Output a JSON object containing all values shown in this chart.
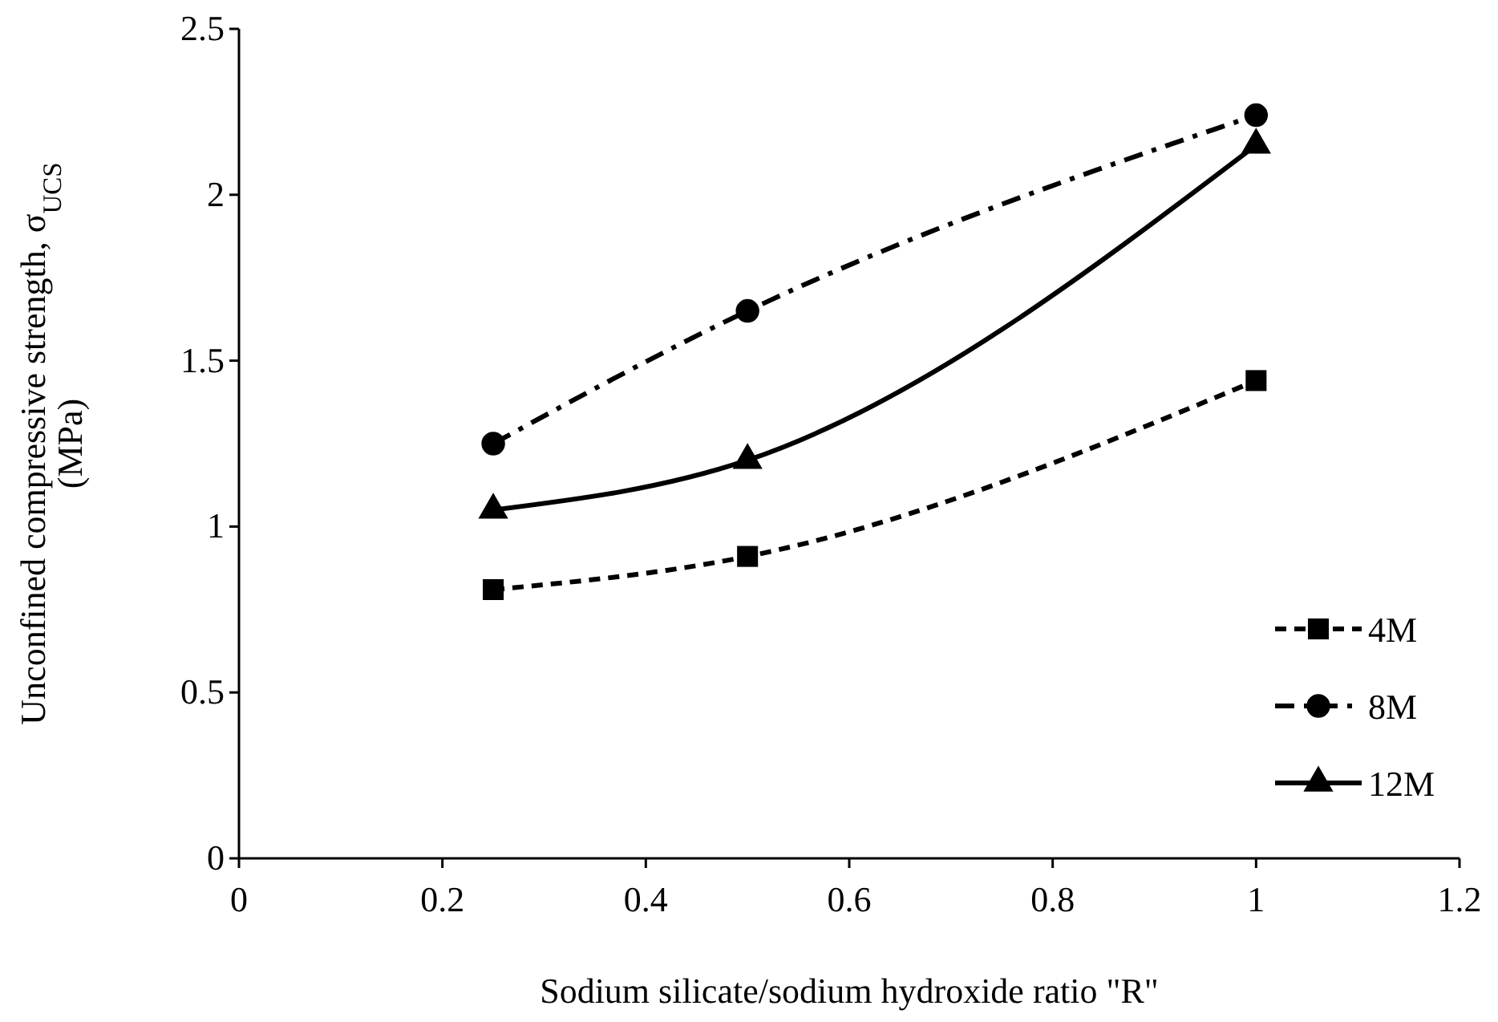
{
  "chart_data": {
    "type": "line",
    "xlabel": "Sodium silicate/sodium hydroxide ratio \"R\"",
    "ylabel": "Unconfined compressive strength, σ$_{UCS}$ (MPa)",
    "x": [
      0.25,
      0.5,
      1
    ],
    "series": [
      {
        "name": "4M",
        "color": "#000000",
        "values": [
          0.81,
          0.91,
          1.44
        ],
        "marker": "square",
        "line_style": "dashed"
      },
      {
        "name": "8M",
        "color": "#000000",
        "values": [
          1.25,
          1.65,
          2.24
        ],
        "marker": "circle",
        "line_style": "dotted"
      },
      {
        "name": "12M",
        "color": "#000000",
        "values": [
          1.05,
          1.2,
          2.15
        ],
        "marker": "triangle",
        "line_style": "solid"
      }
    ],
    "xlim": [
      0,
      1.2
    ],
    "xticks": [
      0,
      {
        "value": 0.2,
        "label": "0.2"
      },
      {
        "value": 0.4,
        "label": "0.4"
      },
      {
        "value": 0.6,
        "label": "0.6"
      },
      {
        "value": 0.8,
        "label": "0.8"
      },
      1,
      {
        "value": 1.2,
        "label": "1.2"
      }
    ],
    "ylim": [
      0,
      2.5
    ],
    "yticks": [
      0,
      0.5,
      1,
      1.5,
      2,
      2.5
    ],
    "grid": false,
    "legend": "bottom right"
  }
}
